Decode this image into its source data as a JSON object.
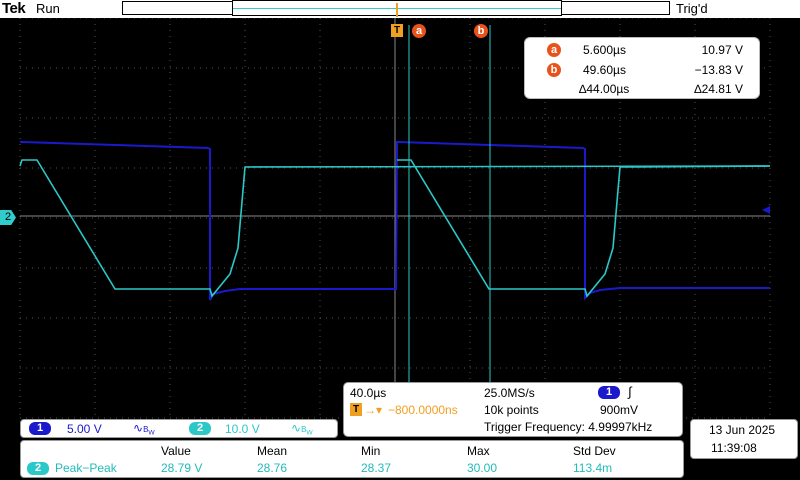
{
  "header": {
    "brand": "Tek",
    "run_state": "Run",
    "trigger_state": "Trig'd"
  },
  "cursors": {
    "a": {
      "label": "a",
      "time": "5.600µs",
      "value": "10.97 V"
    },
    "b": {
      "label": "b",
      "time": "49.60µs",
      "value": "−13.83 V"
    },
    "delta_time": "∆44.00µs",
    "delta_value": "∆24.81 V"
  },
  "trigger_marker": "T",
  "ch2_marker": "2",
  "channels": [
    {
      "number": "1",
      "scale": "5.00 V",
      "bw_icon": "bandwidth-limit-icon",
      "color": "#1a1acc"
    },
    {
      "number": "2",
      "scale": "10.0 V",
      "bw_icon": "bandwidth-limit-icon",
      "color": "#2cc8c8"
    }
  ],
  "horizontal": {
    "scale": "40.0µs",
    "sample_rate": "25.0MS/s",
    "trigger_channel": "1",
    "trigger_slope_icon": "rising-edge-icon",
    "delay": "−800.0000ns",
    "record_length": "10k points",
    "trigger_level": "900mV",
    "trigger_frequency": "Trigger Frequency: 4.99997kHz"
  },
  "datetime": {
    "date": "13 Jun  2025",
    "time": "11:39:08"
  },
  "measurement": {
    "headers": [
      "Value",
      "Mean",
      "Min",
      "Max",
      "Std Dev"
    ],
    "channel": "2",
    "name": "Peak−Peak",
    "values": [
      "28.79 V",
      "28.76",
      "28.37",
      "30.00",
      "113.4m"
    ]
  },
  "colors": {
    "ch1": "#1a1acc",
    "ch2": "#2cc8c8",
    "cursor": "#2cc8c8",
    "marker": "#e8531c",
    "trigger": "#f0a020"
  }
}
